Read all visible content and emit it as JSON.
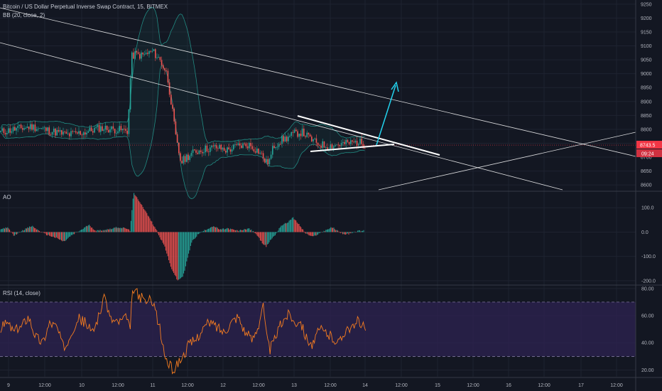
{
  "price_pane": {
    "title": "Bitcoin / US Dollar Perpetual Inverse Swap Contract, 15, BITMEX",
    "indicator": "BB (20, close, 2)",
    "current_price_label": "8743.5",
    "countdown_label": "09:24",
    "badge_color": "#f23645"
  },
  "ao_pane": {
    "title": "AO"
  },
  "rsi_pane": {
    "title": "RSI (14, close)"
  },
  "chart_data": [
    {
      "type": "candlestick",
      "pane": "price",
      "title": "Bitcoin / US Dollar Perpetual Inverse Swap Contract, 15, BITMEX",
      "y_ticks": [
        9250,
        9200,
        9150,
        9100,
        9050,
        9000,
        8950,
        8900,
        8850,
        8800,
        8750,
        8700,
        8650,
        8600
      ],
      "ylim": [
        8580,
        9265
      ],
      "x_ticks": [
        "9",
        "12:00",
        "10",
        "12:00",
        "11",
        "12:00",
        "12",
        "12:00",
        "13",
        "12:00",
        "14",
        "12:00",
        "15",
        "12:00",
        "16",
        "12:00",
        "17",
        "12:00"
      ],
      "current_price": 8743.5,
      "price_path": [
        [
          0,
          8790
        ],
        [
          20,
          8800
        ],
        [
          45,
          8810
        ],
        [
          70,
          8795
        ],
        [
          95,
          8780
        ],
        [
          120,
          8790
        ],
        [
          140,
          8805
        ],
        [
          160,
          8800
        ],
        [
          180,
          8795
        ],
        [
          185,
          9060
        ],
        [
          190,
          9070
        ],
        [
          200,
          9065
        ],
        [
          215,
          9080
        ],
        [
          225,
          9050
        ],
        [
          235,
          9000
        ],
        [
          242,
          8880
        ],
        [
          248,
          8760
        ],
        [
          255,
          8680
        ],
        [
          262,
          8700
        ],
        [
          275,
          8720
        ],
        [
          290,
          8730
        ],
        [
          305,
          8735
        ],
        [
          320,
          8725
        ],
        [
          335,
          8740
        ],
        [
          350,
          8745
        ],
        [
          365,
          8720
        ],
        [
          375,
          8680
        ],
        [
          380,
          8690
        ],
        [
          385,
          8740
        ],
        [
          395,
          8760
        ],
        [
          405,
          8770
        ],
        [
          415,
          8785
        ],
        [
          425,
          8790
        ],
        [
          435,
          8770
        ],
        [
          445,
          8750
        ],
        [
          460,
          8740
        ],
        [
          475,
          8745
        ],
        [
          490,
          8750
        ],
        [
          505,
          8755
        ],
        [
          515,
          8743
        ]
      ],
      "colors": {
        "up": "#26a69a",
        "down": "#ef5350",
        "bands": "#26a69a",
        "trendlines": "#ffffff",
        "arrow": "#22d3ee"
      }
    },
    {
      "type": "bar",
      "pane": "AO",
      "title": "AO",
      "y_ticks": [
        100.0,
        0.0,
        -100.0,
        -200.0
      ],
      "ylim": [
        -215,
        165
      ],
      "profile": [
        [
          0,
          10
        ],
        [
          10,
          20
        ],
        [
          20,
          -15
        ],
        [
          30,
          5
        ],
        [
          45,
          25
        ],
        [
          55,
          5
        ],
        [
          65,
          -10
        ],
        [
          80,
          -25
        ],
        [
          90,
          -40
        ],
        [
          100,
          -15
        ],
        [
          115,
          10
        ],
        [
          125,
          30
        ],
        [
          135,
          5
        ],
        [
          150,
          10
        ],
        [
          165,
          20
        ],
        [
          178,
          15
        ],
        [
          183,
          5
        ],
        [
          188,
          160
        ],
        [
          198,
          120
        ],
        [
          210,
          60
        ],
        [
          220,
          10
        ],
        [
          225,
          -20
        ],
        [
          232,
          -60
        ],
        [
          240,
          -140
        ],
        [
          250,
          -200
        ],
        [
          258,
          -180
        ],
        [
          263,
          -120
        ],
        [
          270,
          -40
        ],
        [
          280,
          -5
        ],
        [
          290,
          10
        ],
        [
          300,
          25
        ],
        [
          310,
          10
        ],
        [
          320,
          15
        ],
        [
          335,
          5
        ],
        [
          350,
          15
        ],
        [
          360,
          -5
        ],
        [
          368,
          -40
        ],
        [
          375,
          -60
        ],
        [
          380,
          -35
        ],
        [
          388,
          -10
        ],
        [
          395,
          25
        ],
        [
          405,
          40
        ],
        [
          412,
          60
        ],
        [
          420,
          35
        ],
        [
          430,
          -5
        ],
        [
          440,
          -20
        ],
        [
          450,
          -5
        ],
        [
          460,
          10
        ],
        [
          468,
          20
        ],
        [
          475,
          5
        ],
        [
          485,
          -10
        ],
        [
          495,
          -5
        ],
        [
          505,
          5
        ],
        [
          513,
          5
        ]
      ],
      "colors": {
        "up": "#26a69a",
        "down": "#ef5350"
      }
    },
    {
      "type": "line",
      "pane": "RSI",
      "title": "RSI (14, close)",
      "y_ticks": [
        80.0,
        60.0,
        40.0,
        20.0
      ],
      "ylim": [
        15,
        82
      ],
      "band": [
        30,
        70
      ],
      "profile": [
        [
          0,
          50
        ],
        [
          10,
          55
        ],
        [
          20,
          48
        ],
        [
          30,
          52
        ],
        [
          40,
          60
        ],
        [
          50,
          45
        ],
        [
          60,
          40
        ],
        [
          70,
          55
        ],
        [
          80,
          52
        ],
        [
          90,
          35
        ],
        [
          100,
          48
        ],
        [
          110,
          58
        ],
        [
          120,
          55
        ],
        [
          130,
          47
        ],
        [
          140,
          62
        ],
        [
          148,
          74
        ],
        [
          155,
          58
        ],
        [
          165,
          55
        ],
        [
          178,
          58
        ],
        [
          183,
          50
        ],
        [
          187,
          80
        ],
        [
          195,
          75
        ],
        [
          205,
          70
        ],
        [
          215,
          72
        ],
        [
          225,
          50
        ],
        [
          232,
          30
        ],
        [
          240,
          22
        ],
        [
          245,
          20
        ],
        [
          250,
          25
        ],
        [
          258,
          30
        ],
        [
          265,
          38
        ],
        [
          275,
          42
        ],
        [
          285,
          50
        ],
        [
          295,
          55
        ],
        [
          305,
          52
        ],
        [
          315,
          48
        ],
        [
          325,
          55
        ],
        [
          335,
          60
        ],
        [
          345,
          48
        ],
        [
          355,
          42
        ],
        [
          365,
          55
        ],
        [
          370,
          70
        ],
        [
          375,
          45
        ],
        [
          380,
          35
        ],
        [
          385,
          40
        ],
        [
          392,
          50
        ],
        [
          400,
          58
        ],
        [
          408,
          62
        ],
        [
          415,
          54
        ],
        [
          422,
          58
        ],
        [
          430,
          45
        ],
        [
          440,
          38
        ],
        [
          450,
          50
        ],
        [
          460,
          47
        ],
        [
          470,
          43
        ],
        [
          478,
          40
        ],
        [
          488,
          52
        ],
        [
          498,
          50
        ],
        [
          505,
          58
        ],
        [
          510,
          52
        ],
        [
          515,
          50
        ]
      ],
      "colors": {
        "line": "#f57c20",
        "band_fill": "#2e2351",
        "band_line": "#8e84b0"
      }
    }
  ]
}
